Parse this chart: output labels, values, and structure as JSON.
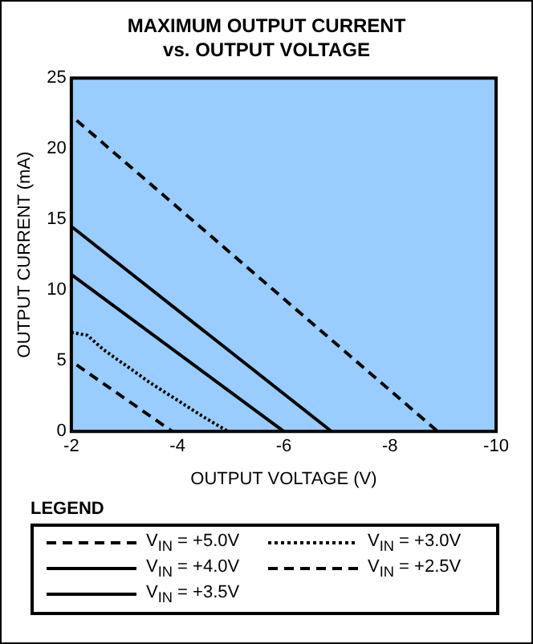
{
  "chart_data": {
    "type": "line",
    "title": "MAXIMUM OUTPUT CURRENT\nvs. OUTPUT VOLTAGE",
    "xlabel": "OUTPUT VOLTAGE (V)",
    "ylabel": "OUTPUT CURRENT (mA)",
    "legend_title": "LEGEND",
    "legend": "bottom",
    "grid": false,
    "marker": "none",
    "xlim": [
      -2,
      -10
    ],
    "xticks": [
      -2,
      -4,
      -6,
      -8,
      -10
    ],
    "ylim": [
      0,
      25
    ],
    "yticks": [
      0,
      5,
      10,
      15,
      20,
      25
    ],
    "series": [
      {
        "name": "V$_{IN}$ = +5.0V",
        "color": "#000000",
        "line_style": "dashed",
        "x": [
          -2.1,
          -8.9
        ],
        "values": [
          22,
          0
        ]
      },
      {
        "name": "V$_{IN}$ = +3.0V",
        "color": "#000000",
        "line_style": "dotted",
        "x": [
          -2,
          -2.3,
          -2.6,
          -3.5,
          -4.5,
          -4.95
        ],
        "values": [
          7,
          6.8,
          5.8,
          3.4,
          1,
          0
        ]
      },
      {
        "name": "V$_{IN}$ = +4.0V",
        "color": "#000000",
        "line_style": "solid",
        "x": [
          -2,
          -6.9
        ],
        "values": [
          14.5,
          0
        ]
      },
      {
        "name": "V$_{IN}$ = +2.5V",
        "color": "#000000",
        "line_style": "dashed",
        "x": [
          -2.1,
          -3.9
        ],
        "values": [
          4.7,
          0
        ]
      },
      {
        "name": "V$_{IN}$ = +3.5V",
        "color": "#000000",
        "line_style": "solid",
        "x": [
          -2,
          -6
        ],
        "values": [
          11.1,
          0
        ]
      }
    ]
  }
}
